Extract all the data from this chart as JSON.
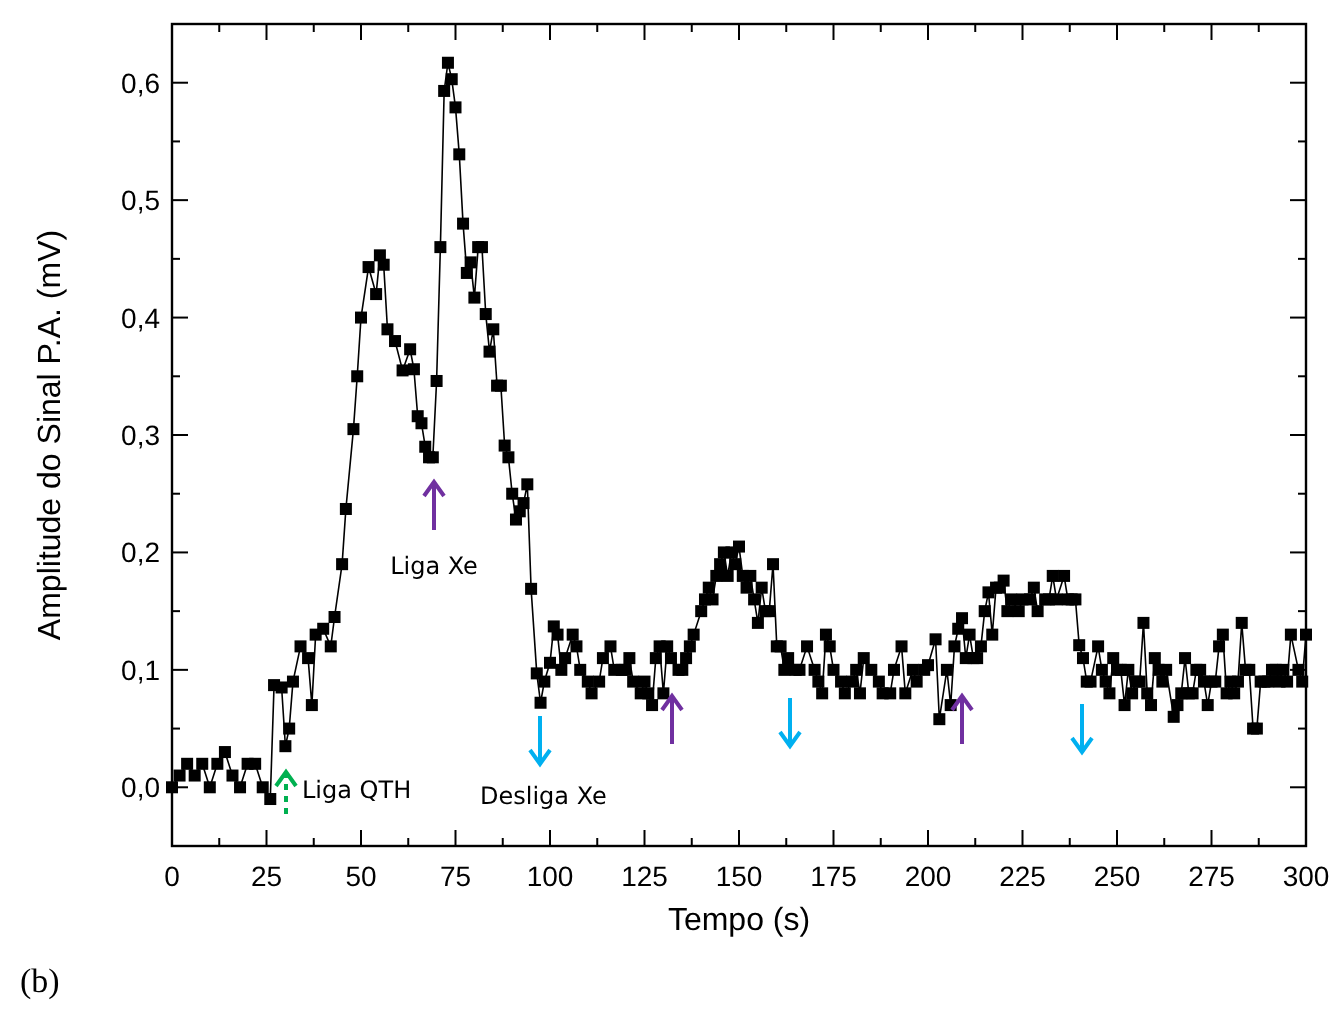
{
  "chart_data": {
    "type": "line",
    "xlabel": "Tempo (s)",
    "ylabel": "Amplitude do Sinal P.A. (mV)",
    "xlim": [
      0,
      300
    ],
    "ylim": [
      -0.05,
      0.65
    ],
    "marker": "square",
    "line_style": "solid",
    "grid": false,
    "xticks": [
      0,
      {
        "value": 12.5,
        "label": null
      },
      25,
      {
        "value": 37.5,
        "label": null
      },
      50,
      {
        "value": 62.5,
        "label": null
      },
      75,
      {
        "value": 87.5,
        "label": null
      },
      100,
      {
        "value": 112.5,
        "label": null
      },
      125,
      {
        "value": 137.5,
        "label": null
      },
      150,
      {
        "value": 162.5,
        "label": null
      },
      175,
      {
        "value": 187.5,
        "label": null
      },
      200,
      {
        "value": 212.5,
        "label": null
      },
      225,
      {
        "value": 237.5,
        "label": null
      },
      250,
      {
        "value": 262.5,
        "label": null
      },
      275,
      {
        "value": 287.5,
        "label": null
      },
      300
    ],
    "yticks": [
      {
        "value": 0,
        "label": "0,0"
      },
      {
        "value": 0.05,
        "label": null
      },
      {
        "value": 0.1,
        "label": "0,1"
      },
      {
        "value": 0.15,
        "label": null
      },
      {
        "value": 0.2,
        "label": "0,2"
      },
      {
        "value": 0.25,
        "label": null
      },
      {
        "value": 0.3,
        "label": "0,3"
      },
      {
        "value": 0.35,
        "label": null
      },
      {
        "value": 0.4,
        "label": "0,4"
      },
      {
        "value": 0.45,
        "label": null
      },
      {
        "value": 0.5,
        "label": "0,5"
      },
      {
        "value": 0.55,
        "label": null
      },
      {
        "value": 0.6,
        "label": "0,6"
      }
    ],
    "x": [
      0,
      2,
      4,
      6,
      8,
      10,
      12,
      14,
      16,
      18,
      20,
      22,
      24,
      26,
      27,
      29,
      30,
      31,
      32,
      34,
      36,
      37,
      38,
      40,
      42,
      43,
      45,
      46,
      48,
      49,
      50,
      52,
      54,
      55,
      56,
      57,
      59,
      61,
      63,
      64,
      65,
      66,
      67,
      68,
      69,
      70,
      71,
      72,
      73,
      74,
      75,
      76,
      77,
      78,
      79,
      80,
      81,
      82,
      83,
      84,
      85,
      86,
      87,
      88,
      89,
      90,
      91,
      92,
      93,
      94,
      95,
      96.5,
      97.5,
      98.5,
      100,
      101,
      102,
      103,
      104,
      106,
      107,
      108,
      110,
      111,
      113,
      114,
      116,
      117,
      119,
      120,
      121,
      122,
      124,
      125,
      126,
      127,
      128,
      129,
      130,
      131,
      132,
      134,
      135,
      136,
      137,
      138,
      140,
      141,
      142,
      143,
      144,
      145,
      146,
      147,
      148,
      149,
      150,
      151,
      152,
      153,
      154,
      155,
      156,
      157,
      158,
      159,
      160,
      161,
      162,
      163,
      165,
      166,
      168,
      170,
      171,
      172,
      173,
      174,
      175,
      177,
      178,
      180,
      181,
      182,
      183,
      185,
      187,
      188,
      190,
      191,
      193,
      194,
      196,
      197,
      199,
      200,
      202,
      203,
      205,
      206,
      207,
      208,
      209,
      210,
      211,
      212,
      213,
      214,
      215,
      216,
      217,
      218,
      219,
      220,
      221,
      222,
      224,
      225,
      227,
      228,
      229,
      231,
      232,
      233,
      234,
      236,
      237,
      238,
      239,
      240,
      241,
      242,
      243,
      245,
      246,
      247,
      248,
      249,
      250,
      251,
      252,
      253,
      254,
      255,
      256,
      257,
      258,
      259,
      260,
      261,
      262,
      263,
      265,
      266,
      267,
      268,
      269,
      270,
      271,
      272,
      273,
      274,
      275,
      276,
      277,
      278,
      279,
      280,
      281,
      282,
      283,
      284,
      285,
      286,
      287,
      288,
      289,
      290,
      291,
      292,
      293,
      294,
      295,
      296,
      298,
      299,
      300
    ],
    "series": [
      {
        "color": "#000000",
        "values": [
          0.0,
          0.01,
          0.02,
          0.01,
          0.02,
          0.0,
          0.02,
          0.03,
          0.01,
          0.0,
          0.02,
          0.02,
          0.0,
          -0.01,
          0.087,
          0.085,
          0.035,
          0.05,
          0.09,
          0.12,
          0.11,
          0.07,
          0.13,
          0.135,
          0.12,
          0.145,
          0.19,
          0.237,
          0.305,
          0.35,
          0.4,
          0.443,
          0.42,
          0.453,
          0.445,
          0.39,
          0.38,
          0.355,
          0.373,
          0.356,
          0.316,
          0.31,
          0.29,
          0.281,
          0.281,
          0.346,
          0.46,
          0.593,
          0.617,
          0.603,
          0.579,
          0.539,
          0.48,
          0.438,
          0.447,
          0.417,
          0.46,
          0.46,
          0.403,
          0.371,
          0.39,
          0.342,
          0.342,
          0.291,
          0.281,
          0.25,
          0.228,
          0.235,
          0.242,
          0.258,
          0.169,
          0.097,
          0.072,
          0.09,
          0.106,
          0.137,
          0.13,
          0.1,
          0.11,
          0.13,
          0.12,
          0.1,
          0.09,
          0.08,
          0.09,
          0.11,
          0.12,
          0.1,
          0.1,
          0.1,
          0.11,
          0.09,
          0.08,
          0.09,
          0.08,
          0.07,
          0.11,
          0.12,
          0.08,
          0.12,
          0.11,
          0.1,
          0.1,
          0.11,
          0.12,
          0.13,
          0.15,
          0.16,
          0.17,
          0.16,
          0.18,
          0.19,
          0.2,
          0.18,
          0.2,
          0.19,
          0.205,
          0.18,
          0.17,
          0.18,
          0.16,
          0.14,
          0.17,
          0.15,
          0.15,
          0.19,
          0.12,
          0.12,
          0.1,
          0.11,
          0.1,
          0.1,
          0.12,
          0.1,
          0.09,
          0.08,
          0.13,
          0.12,
          0.1,
          0.09,
          0.08,
          0.09,
          0.1,
          0.08,
          0.11,
          0.1,
          0.09,
          0.08,
          0.08,
          0.1,
          0.12,
          0.08,
          0.1,
          0.09,
          0.1,
          0.104,
          0.126,
          0.058,
          0.1,
          0.07,
          0.12,
          0.135,
          0.144,
          0.11,
          0.13,
          0.11,
          0.11,
          0.12,
          0.15,
          0.166,
          0.13,
          0.17,
          0.17,
          0.176,
          0.15,
          0.16,
          0.15,
          0.16,
          0.16,
          0.17,
          0.15,
          0.16,
          0.16,
          0.18,
          0.16,
          0.18,
          0.16,
          0.16,
          0.16,
          0.121,
          0.11,
          0.09,
          0.09,
          0.12,
          0.1,
          0.09,
          0.08,
          0.11,
          0.1,
          0.1,
          0.07,
          0.1,
          0.08,
          0.09,
          0.09,
          0.14,
          0.08,
          0.07,
          0.11,
          0.1,
          0.09,
          0.1,
          0.06,
          0.07,
          0.08,
          0.11,
          0.08,
          0.08,
          0.1,
          0.1,
          0.09,
          0.07,
          0.09,
          0.09,
          0.12,
          0.13,
          0.08,
          0.09,
          0.08,
          0.09,
          0.14,
          0.1,
          0.1,
          0.05,
          0.05,
          0.09,
          0.09,
          0.09,
          0.1,
          0.1,
          0.09,
          0.1,
          0.09,
          0.13,
          0.1,
          0.09,
          0.13
        ]
      }
    ],
    "annotations": [
      "Liga QTH",
      "Liga Xe",
      "Desliga Xe",
      "(b)"
    ]
  }
}
